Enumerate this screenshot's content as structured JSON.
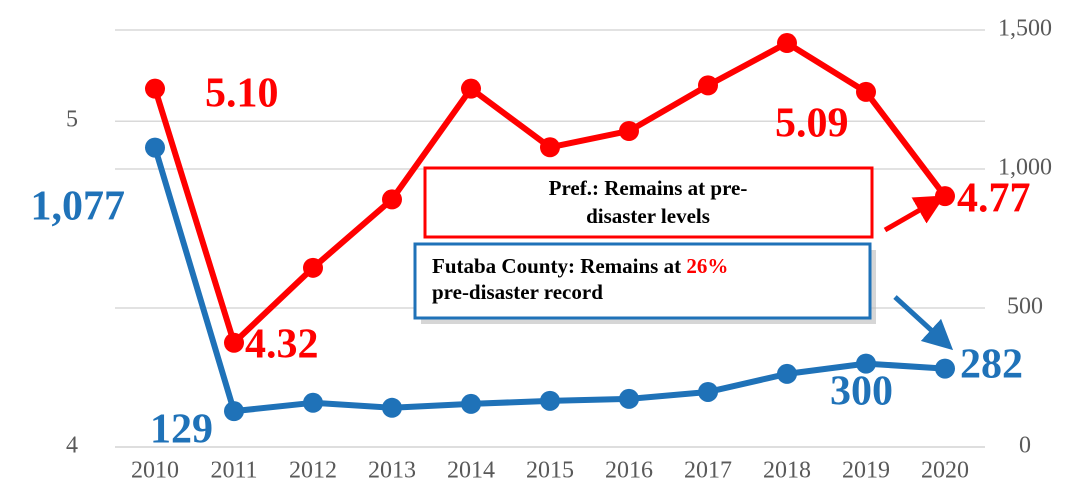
{
  "chart_data": {
    "type": "line",
    "categories": [
      "2010",
      "2011",
      "2012",
      "2013",
      "2014",
      "2015",
      "2016",
      "2017",
      "2018",
      "2019",
      "2020"
    ],
    "series": [
      {
        "name": "Pref.",
        "color": "#ff0000",
        "axis": "y",
        "values": [
          5.1,
          4.32,
          4.55,
          4.76,
          5.1,
          4.92,
          4.97,
          5.11,
          5.24,
          5.09,
          4.77
        ],
        "value_labels": [
          "5.10",
          "4.32",
          null,
          null,
          null,
          null,
          null,
          null,
          null,
          "5.09",
          "4.77"
        ]
      },
      {
        "name": "Futaba County",
        "color": "#1f72b8",
        "axis": "y2",
        "values": [
          1077,
          129,
          159,
          141,
          155,
          166,
          173,
          198,
          263,
          300,
          282
        ],
        "value_labels": [
          "1,077",
          "129",
          null,
          null,
          null,
          null,
          null,
          null,
          null,
          "300",
          "282"
        ]
      }
    ],
    "ylim": [
      4,
      5.28
    ],
    "yticks": [
      4,
      5
    ],
    "y2lim": [
      0,
      1500
    ],
    "y2ticks": [
      0,
      {
        "value": 500,
        "label": "500"
      },
      {
        "value": 1000,
        "label": "1,000"
      },
      {
        "value": 1500,
        "label": "1,500"
      }
    ],
    "grid": true,
    "annotations": {
      "pref": {
        "line1": "Pref.: Remains at pre-",
        "line2": "disaster levels"
      },
      "futaba": {
        "line1": "Futaba County: Remains at ",
        "highlight": "26%",
        "line2": "pre-disaster record"
      }
    }
  }
}
